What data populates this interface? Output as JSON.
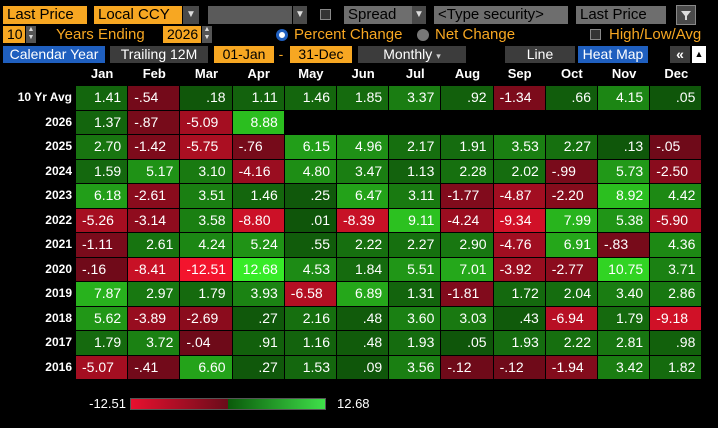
{
  "toolbar1": {
    "metric": "Last Price",
    "currency": "Local CCY",
    "spread": "Spread",
    "security_placeholder": "<Type security>",
    "metric2": "Last Price"
  },
  "toolbar2": {
    "years": "10",
    "years_label": "Years Ending",
    "end_year": "2026",
    "option_percent": "Percent Change",
    "option_net": "Net Change",
    "high_low_avg": "High/Low/Avg"
  },
  "toolbar3": {
    "calendar_year": "Calendar Year",
    "trailing": "Trailing 12M",
    "from_date": "01-Jan",
    "dash": "-",
    "to_date": "31-Dec",
    "period": "Monthly",
    "line": "Line",
    "heat_map": "Heat Map",
    "more": "«"
  },
  "months": [
    "Jan",
    "Feb",
    "Mar",
    "Apr",
    "May",
    "Jun",
    "Jul",
    "Aug",
    "Sep",
    "Oct",
    "Nov",
    "Dec"
  ],
  "rows": [
    {
      "label": "10 Yr Avg",
      "values": [
        "1.41",
        "-.54",
        ".18",
        "1.11",
        "1.46",
        "1.85",
        "3.37",
        ".92",
        "-1.34",
        ".66",
        "4.15",
        ".05"
      ]
    },
    {
      "label": "2026",
      "values": [
        "1.37",
        "-.87",
        "-5.09",
        "8.88",
        "",
        "",
        "",
        "",
        "",
        "",
        "",
        ""
      ]
    },
    {
      "label": "2025",
      "values": [
        "2.70",
        "-1.42",
        "-5.75",
        "-.76",
        "6.15",
        "4.96",
        "2.17",
        "1.91",
        "3.53",
        "2.27",
        ".13",
        "-.05"
      ]
    },
    {
      "label": "2024",
      "values": [
        "1.59",
        "5.17",
        "3.10",
        "-4.16",
        "4.80",
        "3.47",
        "1.13",
        "2.28",
        "2.02",
        "-.99",
        "5.73",
        "-2.50"
      ]
    },
    {
      "label": "2023",
      "values": [
        "6.18",
        "-2.61",
        "3.51",
        "1.46",
        ".25",
        "6.47",
        "3.11",
        "-1.77",
        "-4.87",
        "-2.20",
        "8.92",
        "4.42"
      ]
    },
    {
      "label": "2022",
      "values": [
        "-5.26",
        "-3.14",
        "3.58",
        "-8.80",
        ".01",
        "-8.39",
        "9.11",
        "-4.24",
        "-9.34",
        "7.99",
        "5.38",
        "-5.90"
      ]
    },
    {
      "label": "2021",
      "values": [
        "-1.11",
        "2.61",
        "4.24",
        "5.24",
        ".55",
        "2.22",
        "2.27",
        "2.90",
        "-4.76",
        "6.91",
        "-.83",
        "4.36"
      ]
    },
    {
      "label": "2020",
      "values": [
        "-.16",
        "-8.41",
        "-12.51",
        "12.68",
        "4.53",
        "1.84",
        "5.51",
        "7.01",
        "-3.92",
        "-2.77",
        "10.75",
        "3.71"
      ]
    },
    {
      "label": "2019",
      "values": [
        "7.87",
        "2.97",
        "1.79",
        "3.93",
        "-6.58",
        "6.89",
        "1.31",
        "-1.81",
        "1.72",
        "2.04",
        "3.40",
        "2.86"
      ]
    },
    {
      "label": "2018",
      "values": [
        "5.62",
        "-3.89",
        "-2.69",
        ".27",
        "2.16",
        ".48",
        "3.60",
        "3.03",
        ".43",
        "-6.94",
        "1.79",
        "-9.18"
      ]
    },
    {
      "label": "2017",
      "values": [
        "1.79",
        "3.72",
        "-.04",
        ".91",
        "1.16",
        ".48",
        "1.93",
        ".05",
        "1.93",
        "2.22",
        "2.81",
        ".98"
      ]
    },
    {
      "label": "2016",
      "values": [
        "-5.07",
        "-.41",
        "6.60",
        ".27",
        "1.53",
        ".09",
        "3.56",
        "-.12",
        "-.12",
        "-1.94",
        "3.42",
        "1.82"
      ]
    }
  ],
  "legend": {
    "min": "-12.51",
    "max": "12.68"
  },
  "colors": {
    "accent": "#f7a722",
    "positive": "#1a8a1a",
    "negative": "#b0102a"
  }
}
